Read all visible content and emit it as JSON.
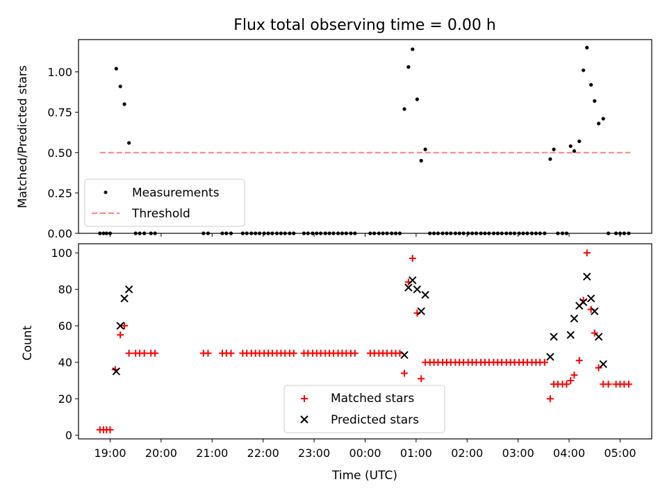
{
  "chart_data": [
    {
      "type": "scatter",
      "title": "Flux total observing time = 0.00 h",
      "xlabel": "",
      "ylabel": "Matched/Predicted stars",
      "xlim": [
        18.38,
        29.62
      ],
      "ylim": [
        0,
        1.2
      ],
      "yticks": [
        0.0,
        0.25,
        0.5,
        0.75,
        1.0
      ],
      "ytick_labels": [
        "0.00",
        "0.25",
        "0.50",
        "0.75",
        "1.00"
      ],
      "legend_position": "lower-left",
      "series": [
        {
          "name": "Measurements",
          "marker": "dot",
          "color": "#000000",
          "points": [
            [
              18.8,
              0
            ],
            [
              18.87,
              0
            ],
            [
              18.93,
              0
            ],
            [
              19.0,
              0
            ],
            [
              19.12,
              1.02
            ],
            [
              19.2,
              0.91
            ],
            [
              19.28,
              0.8
            ],
            [
              19.37,
              0.56
            ],
            [
              19.5,
              0
            ],
            [
              19.58,
              0
            ],
            [
              19.67,
              0
            ],
            [
              19.8,
              0
            ],
            [
              19.88,
              0
            ],
            [
              20.83,
              0
            ],
            [
              20.92,
              0
            ],
            [
              21.2,
              0
            ],
            [
              21.28,
              0
            ],
            [
              21.37,
              0
            ],
            [
              21.6,
              0
            ],
            [
              21.68,
              0
            ],
            [
              21.77,
              0
            ],
            [
              21.85,
              0
            ],
            [
              21.93,
              0
            ],
            [
              22.02,
              0
            ],
            [
              22.1,
              0
            ],
            [
              22.18,
              0
            ],
            [
              22.27,
              0
            ],
            [
              22.35,
              0
            ],
            [
              22.43,
              0
            ],
            [
              22.52,
              0
            ],
            [
              22.6,
              0
            ],
            [
              22.8,
              0
            ],
            [
              22.88,
              0
            ],
            [
              22.97,
              0
            ],
            [
              23.05,
              0
            ],
            [
              23.13,
              0
            ],
            [
              23.22,
              0
            ],
            [
              23.3,
              0
            ],
            [
              23.38,
              0
            ],
            [
              23.47,
              0
            ],
            [
              23.55,
              0
            ],
            [
              23.63,
              0
            ],
            [
              23.72,
              0
            ],
            [
              23.8,
              0
            ],
            [
              24.1,
              0
            ],
            [
              24.18,
              0
            ],
            [
              24.27,
              0
            ],
            [
              24.35,
              0
            ],
            [
              24.43,
              0
            ],
            [
              24.52,
              0
            ],
            [
              24.6,
              0
            ],
            [
              24.68,
              0
            ],
            [
              24.77,
              0.77
            ],
            [
              24.85,
              1.03
            ],
            [
              24.93,
              1.14
            ],
            [
              25.02,
              0.83
            ],
            [
              25.1,
              0.45
            ],
            [
              25.18,
              0.52
            ],
            [
              25.27,
              0
            ],
            [
              25.35,
              0
            ],
            [
              25.43,
              0
            ],
            [
              25.52,
              0
            ],
            [
              25.6,
              0
            ],
            [
              25.68,
              0
            ],
            [
              25.77,
              0
            ],
            [
              25.85,
              0
            ],
            [
              25.93,
              0
            ],
            [
              26.02,
              0
            ],
            [
              26.1,
              0
            ],
            [
              26.18,
              0
            ],
            [
              26.27,
              0
            ],
            [
              26.35,
              0
            ],
            [
              26.43,
              0
            ],
            [
              26.52,
              0
            ],
            [
              26.6,
              0
            ],
            [
              26.68,
              0
            ],
            [
              26.77,
              0
            ],
            [
              26.85,
              0
            ],
            [
              26.93,
              0
            ],
            [
              27.02,
              0
            ],
            [
              27.1,
              0
            ],
            [
              27.18,
              0
            ],
            [
              27.27,
              0
            ],
            [
              27.35,
              0
            ],
            [
              27.43,
              0
            ],
            [
              27.52,
              0
            ],
            [
              27.63,
              0.46
            ],
            [
              27.7,
              0.52
            ],
            [
              27.78,
              0
            ],
            [
              27.87,
              0
            ],
            [
              27.95,
              0
            ],
            [
              28.03,
              0.54
            ],
            [
              28.1,
              0.51
            ],
            [
              28.2,
              0.57
            ],
            [
              28.28,
              1.01
            ],
            [
              28.35,
              1.15
            ],
            [
              28.43,
              0.92
            ],
            [
              28.5,
              0.82
            ],
            [
              28.58,
              0.68
            ],
            [
              28.67,
              0.71
            ],
            [
              28.77,
              0
            ],
            [
              28.92,
              0
            ],
            [
              29.0,
              0
            ],
            [
              29.08,
              0
            ],
            [
              29.17,
              0
            ]
          ]
        },
        {
          "name": "Threshold",
          "style": "dashed",
          "color": "#ff7f7f",
          "points": [
            [
              18.8,
              0.5
            ],
            [
              29.2,
              0.5
            ]
          ]
        }
      ]
    },
    {
      "type": "scatter",
      "title": "",
      "xlabel": "Time (UTC)",
      "ylabel": "Count",
      "xlim": [
        18.38,
        29.62
      ],
      "ylim": [
        -2,
        105
      ],
      "xticks": [
        19,
        20,
        21,
        22,
        23,
        24,
        25,
        26,
        27,
        28,
        29
      ],
      "xtick_labels": [
        "19:00",
        "20:00",
        "21:00",
        "22:00",
        "23:00",
        "00:00",
        "01:00",
        "02:00",
        "03:00",
        "04:00",
        "05:00"
      ],
      "yticks": [
        0,
        20,
        40,
        60,
        80,
        100
      ],
      "ytick_labels": [
        "0",
        "20",
        "40",
        "60",
        "80",
        "100"
      ],
      "legend_position": "lower-center",
      "series": [
        {
          "name": "Matched stars",
          "marker": "plus",
          "color": "#ff0000",
          "points": [
            [
              18.8,
              3
            ],
            [
              18.87,
              3
            ],
            [
              18.93,
              3
            ],
            [
              19.0,
              3
            ],
            [
              19.1,
              36
            ],
            [
              19.2,
              55
            ],
            [
              19.28,
              60
            ],
            [
              19.37,
              45
            ],
            [
              19.5,
              45
            ],
            [
              19.58,
              45
            ],
            [
              19.67,
              45
            ],
            [
              19.8,
              45
            ],
            [
              19.88,
              45
            ],
            [
              20.83,
              45
            ],
            [
              20.92,
              45
            ],
            [
              21.2,
              45
            ],
            [
              21.28,
              45
            ],
            [
              21.37,
              45
            ],
            [
              21.6,
              45
            ],
            [
              21.68,
              45
            ],
            [
              21.77,
              45
            ],
            [
              21.85,
              45
            ],
            [
              21.93,
              45
            ],
            [
              22.02,
              45
            ],
            [
              22.1,
              45
            ],
            [
              22.18,
              45
            ],
            [
              22.27,
              45
            ],
            [
              22.35,
              45
            ],
            [
              22.43,
              45
            ],
            [
              22.52,
              45
            ],
            [
              22.6,
              45
            ],
            [
              22.8,
              45
            ],
            [
              22.88,
              45
            ],
            [
              22.97,
              45
            ],
            [
              23.05,
              45
            ],
            [
              23.13,
              45
            ],
            [
              23.22,
              45
            ],
            [
              23.3,
              45
            ],
            [
              23.38,
              45
            ],
            [
              23.47,
              45
            ],
            [
              23.55,
              45
            ],
            [
              23.63,
              45
            ],
            [
              23.72,
              45
            ],
            [
              23.8,
              45
            ],
            [
              24.1,
              45
            ],
            [
              24.18,
              45
            ],
            [
              24.27,
              45
            ],
            [
              24.35,
              45
            ],
            [
              24.43,
              45
            ],
            [
              24.52,
              45
            ],
            [
              24.6,
              45
            ],
            [
              24.68,
              45
            ],
            [
              24.77,
              34
            ],
            [
              24.85,
              84
            ],
            [
              24.93,
              97
            ],
            [
              25.02,
              67
            ],
            [
              25.1,
              31
            ],
            [
              25.18,
              40
            ],
            [
              25.27,
              40
            ],
            [
              25.35,
              40
            ],
            [
              25.43,
              40
            ],
            [
              25.52,
              40
            ],
            [
              25.6,
              40
            ],
            [
              25.68,
              40
            ],
            [
              25.77,
              40
            ],
            [
              25.85,
              40
            ],
            [
              25.93,
              40
            ],
            [
              26.02,
              40
            ],
            [
              26.1,
              40
            ],
            [
              26.18,
              40
            ],
            [
              26.27,
              40
            ],
            [
              26.35,
              40
            ],
            [
              26.43,
              40
            ],
            [
              26.52,
              40
            ],
            [
              26.6,
              40
            ],
            [
              26.68,
              40
            ],
            [
              26.77,
              40
            ],
            [
              26.85,
              40
            ],
            [
              26.93,
              40
            ],
            [
              27.02,
              40
            ],
            [
              27.1,
              40
            ],
            [
              27.18,
              40
            ],
            [
              27.27,
              40
            ],
            [
              27.35,
              40
            ],
            [
              27.43,
              40
            ],
            [
              27.52,
              40
            ],
            [
              27.63,
              20
            ],
            [
              27.7,
              28
            ],
            [
              27.78,
              28
            ],
            [
              27.87,
              28
            ],
            [
              27.95,
              28
            ],
            [
              28.03,
              30
            ],
            [
              28.1,
              33
            ],
            [
              28.2,
              41
            ],
            [
              28.28,
              74
            ],
            [
              28.35,
              100
            ],
            [
              28.43,
              69
            ],
            [
              28.5,
              56
            ],
            [
              28.58,
              37
            ],
            [
              28.67,
              28
            ],
            [
              28.77,
              28
            ],
            [
              28.92,
              28
            ],
            [
              29.0,
              28
            ],
            [
              29.08,
              28
            ],
            [
              29.17,
              28
            ]
          ]
        },
        {
          "name": "Predicted stars",
          "marker": "x",
          "color": "#000000",
          "points": [
            [
              19.12,
              35
            ],
            [
              19.2,
              60
            ],
            [
              19.28,
              75
            ],
            [
              19.37,
              80
            ],
            [
              24.77,
              44
            ],
            [
              24.85,
              81
            ],
            [
              24.93,
              85
            ],
            [
              25.02,
              80
            ],
            [
              25.1,
              68
            ],
            [
              25.18,
              77
            ],
            [
              27.63,
              43
            ],
            [
              27.7,
              54
            ],
            [
              28.03,
              55
            ],
            [
              28.1,
              64
            ],
            [
              28.2,
              71
            ],
            [
              28.28,
              73
            ],
            [
              28.35,
              87
            ],
            [
              28.43,
              75
            ],
            [
              28.5,
              68
            ],
            [
              28.58,
              54
            ],
            [
              28.67,
              39
            ]
          ]
        }
      ]
    }
  ]
}
